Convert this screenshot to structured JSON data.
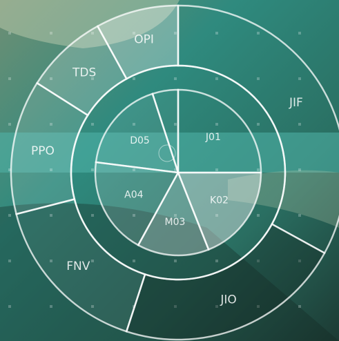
{
  "chart_data": {
    "type": "sunburst",
    "outer": {
      "categories": [
        "JIF",
        "JIO",
        "FNV",
        "PPO",
        "TDS",
        "OPI"
      ],
      "values": [
        33,
        22,
        16,
        13,
        8,
        8
      ],
      "colors": [
        "rgba(255,255,255,0)",
        "rgba(20,40,35,0.35)",
        "rgba(255,255,255,0.06)",
        "rgba(255,255,255,0.12)",
        "rgba(255,255,255,0.2)",
        "rgba(255,255,255,0.3)"
      ]
    },
    "inner": {
      "categories": [
        "J01",
        "K02",
        "M03",
        "A04",
        "D05",
        null
      ],
      "values": [
        25,
        19,
        14,
        19,
        18,
        5
      ],
      "colors": [
        "rgba(255,255,255,0)",
        "rgba(255,255,255,0.4)",
        "rgba(255,255,255,0.28)",
        "rgba(255,255,255,0.15)",
        "rgba(255,255,255,0.08)",
        "rgba(255,255,255,0.05)"
      ]
    }
  }
}
